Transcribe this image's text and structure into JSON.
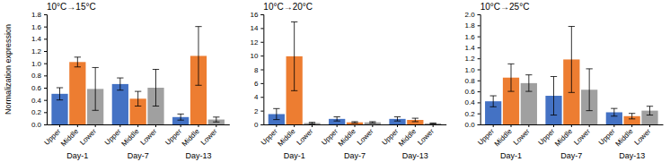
{
  "chart_data": [
    {
      "type": "bar",
      "title": "10°C→15°C",
      "ylabel": "Normalization expression",
      "categories": [
        "Day-1",
        "Day-7",
        "Day-13"
      ],
      "series": [
        {
          "name": "Upper",
          "color": "#4472C4",
          "values": [
            0.5,
            0.66,
            0.12
          ],
          "errors": [
            0.1,
            0.1,
            0.05
          ]
        },
        {
          "name": "Middle",
          "color": "#ED7D31",
          "values": [
            1.02,
            0.42,
            1.12
          ],
          "errors": [
            0.08,
            0.12,
            0.48
          ]
        },
        {
          "name": "Lower",
          "color": "#A0A0A0",
          "values": [
            0.58,
            0.6,
            0.08
          ],
          "errors": [
            0.35,
            0.3,
            0.04
          ]
        }
      ],
      "ylim": [
        0,
        1.8
      ],
      "yticks": [
        {
          "value": 0,
          "label": "0.0"
        },
        0.2,
        0.4,
        0.6,
        0.8,
        {
          "value": 1,
          "label": "1.0"
        },
        1.2,
        1.4,
        1.6,
        1.8
      ]
    },
    {
      "type": "bar",
      "title": "10°C→20°C",
      "categories": [
        "Day-1",
        "Day-7",
        "Day-13"
      ],
      "series": [
        {
          "name": "Upper",
          "color": "#4472C4",
          "values": [
            1.5,
            0.8,
            0.8
          ],
          "errors": [
            0.8,
            0.3,
            0.3
          ]
        },
        {
          "name": "Middle",
          "color": "#ED7D31",
          "values": [
            9.9,
            0.3,
            0.65
          ],
          "errors": [
            5.0,
            0.1,
            0.25
          ]
        },
        {
          "name": "Lower",
          "color": "#A0A0A0",
          "values": [
            0.2,
            0.3,
            0.15
          ],
          "errors": [
            0.1,
            0.1,
            0.05
          ]
        }
      ],
      "ylim": [
        0,
        16
      ],
      "yticks": [
        0,
        2,
        4,
        6,
        8,
        10,
        12,
        14,
        16
      ]
    },
    {
      "type": "bar",
      "title": "10°C→25°C",
      "categories": [
        "Day-1",
        "Day-7",
        "Day-13"
      ],
      "series": [
        {
          "name": "Upper",
          "color": "#4472C4",
          "values": [
            0.42,
            0.52,
            0.22
          ],
          "errors": [
            0.1,
            0.35,
            0.07
          ]
        },
        {
          "name": "Middle",
          "color": "#ED7D31",
          "values": [
            0.85,
            1.18,
            0.15
          ],
          "errors": [
            0.25,
            0.6,
            0.05
          ]
        },
        {
          "name": "Lower",
          "color": "#A0A0A0",
          "values": [
            0.75,
            0.63,
            0.25
          ],
          "errors": [
            0.15,
            0.38,
            0.08
          ]
        }
      ],
      "ylim": [
        0,
        2.0
      ],
      "yticks": [
        {
          "value": 0,
          "label": "0.0"
        },
        0.2,
        0.4,
        0.6,
        0.8,
        {
          "value": 1,
          "label": "1.0"
        },
        1.2,
        1.4,
        1.6,
        1.8,
        {
          "value": 2,
          "label": "2.0"
        }
      ]
    }
  ]
}
